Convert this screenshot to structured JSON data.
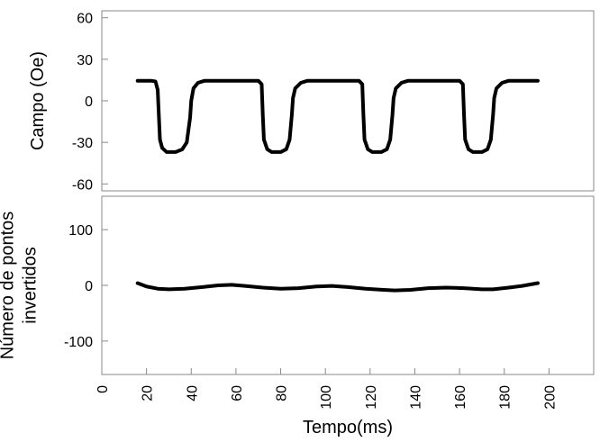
{
  "chart_data": [
    {
      "type": "line",
      "ylabel": "Campo (Oe)",
      "xlabel": "",
      "xlim": [
        0,
        220
      ],
      "ylim": [
        -65,
        65
      ],
      "yticks": [
        60,
        30,
        0,
        -30,
        -60
      ],
      "grid": false,
      "series": [
        {
          "color": "#000000",
          "points": [
            [
              16,
              14.5
            ],
            [
              22,
              14.5
            ],
            [
              24,
              14
            ],
            [
              25,
              8
            ],
            [
              25.5,
              -10
            ],
            [
              26,
              -28
            ],
            [
              27,
              -34
            ],
            [
              29,
              -37
            ],
            [
              33,
              -37
            ],
            [
              36,
              -35
            ],
            [
              38,
              -30
            ],
            [
              39.5,
              -12
            ],
            [
              40,
              0
            ],
            [
              41,
              9
            ],
            [
              43,
              13
            ],
            [
              46,
              14.5
            ],
            [
              70,
              14.5
            ],
            [
              71.5,
              12
            ],
            [
              72,
              -10
            ],
            [
              72.5,
              -28
            ],
            [
              74,
              -35
            ],
            [
              76,
              -37
            ],
            [
              80,
              -37
            ],
            [
              82.5,
              -35
            ],
            [
              84,
              -28
            ],
            [
              85,
              -10
            ],
            [
              85.5,
              2
            ],
            [
              86.5,
              9
            ],
            [
              89,
              13
            ],
            [
              92,
              14.5
            ],
            [
              115,
              14.5
            ],
            [
              116.5,
              12
            ],
            [
              117,
              -10
            ],
            [
              117.5,
              -28
            ],
            [
              119,
              -35
            ],
            [
              121,
              -37
            ],
            [
              125,
              -37
            ],
            [
              127.5,
              -35
            ],
            [
              129,
              -28
            ],
            [
              130,
              -10
            ],
            [
              130.5,
              2
            ],
            [
              131.5,
              9
            ],
            [
              134,
              13
            ],
            [
              137,
              14.5
            ],
            [
              160,
              14.5
            ],
            [
              161.5,
              12
            ],
            [
              162,
              -10
            ],
            [
              162.5,
              -28
            ],
            [
              164,
              -35
            ],
            [
              166,
              -37
            ],
            [
              170,
              -37
            ],
            [
              172.5,
              -35
            ],
            [
              174,
              -28
            ],
            [
              175,
              -10
            ],
            [
              175.5,
              2
            ],
            [
              176.5,
              9
            ],
            [
              179,
              13
            ],
            [
              182,
              14.5
            ],
            [
              195,
              14.5
            ]
          ]
        }
      ]
    },
    {
      "type": "line",
      "ylabel": "Número de pontos invertidos",
      "ylabel_lines": [
        "Número de pontos",
        "invertidos"
      ],
      "xlabel": "Tempo(ms)",
      "xlim": [
        0,
        220
      ],
      "ylim": [
        -160,
        160
      ],
      "yticks": [
        100,
        0,
        -100
      ],
      "xticks": [
        0,
        20,
        40,
        60,
        80,
        100,
        120,
        140,
        160,
        180,
        200
      ],
      "grid": false,
      "series": [
        {
          "color": "#000000",
          "points": [
            [
              16,
              4
            ],
            [
              20,
              -2
            ],
            [
              25,
              -6
            ],
            [
              30,
              -7
            ],
            [
              37,
              -6
            ],
            [
              45,
              -3
            ],
            [
              52,
              0
            ],
            [
              58,
              1
            ],
            [
              64,
              -1
            ],
            [
              72,
              -4
            ],
            [
              80,
              -6
            ],
            [
              88,
              -5
            ],
            [
              96,
              -2
            ],
            [
              103,
              -1
            ],
            [
              110,
              -3
            ],
            [
              118,
              -6
            ],
            [
              126,
              -8
            ],
            [
              131,
              -9
            ],
            [
              138,
              -8
            ],
            [
              146,
              -5
            ],
            [
              154,
              -4
            ],
            [
              162,
              -5
            ],
            [
              170,
              -7
            ],
            [
              175,
              -7
            ],
            [
              182,
              -4
            ],
            [
              188,
              -1
            ],
            [
              195,
              4
            ]
          ]
        }
      ]
    }
  ]
}
